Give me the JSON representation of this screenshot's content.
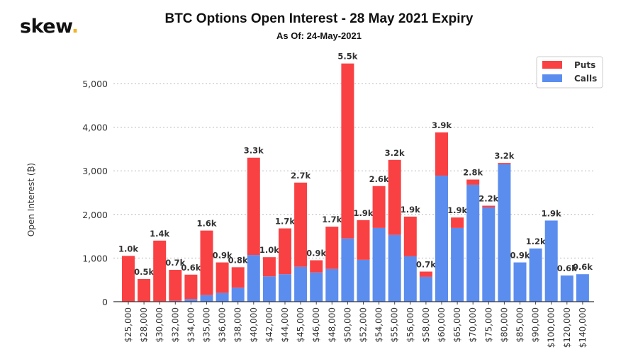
{
  "logo": {
    "text": "skew",
    "dot": "."
  },
  "chart_data": {
    "type": "bar",
    "stacked": true,
    "title": "BTC Options Open Interest - 28 May 2021 Expiry",
    "subtitle": "As Of: 24-May-2021",
    "xlabel": "",
    "ylabel": "Open Interest (₿)",
    "ylim": [
      0,
      5700
    ],
    "yticks": [
      0,
      1000,
      2000,
      3000,
      4000,
      5000
    ],
    "ytick_labels": [
      "0",
      "1,000",
      "2,000",
      "3,000",
      "4,000",
      "5,000"
    ],
    "grid": "horizontal dotted",
    "legend_position": "top-right",
    "categories": [
      "$25,000",
      "$28,000",
      "$30,000",
      "$32,000",
      "$34,000",
      "$35,000",
      "$36,000",
      "$38,000",
      "$40,000",
      "$42,000",
      "$44,000",
      "$45,000",
      "$46,000",
      "$48,000",
      "$50,000",
      "$52,000",
      "$54,000",
      "$55,000",
      "$56,000",
      "$58,000",
      "$60,000",
      "$65,000",
      "$70,000",
      "$75,000",
      "$80,000",
      "$85,000",
      "$90,000",
      "$100,000",
      "$120,000",
      "$140,000"
    ],
    "series": [
      {
        "name": "Calls",
        "color": "#5b8def",
        "values": [
          0,
          0,
          10,
          20,
          60,
          150,
          200,
          320,
          1070,
          580,
          630,
          800,
          670,
          750,
          1450,
          960,
          1690,
          1530,
          1040,
          570,
          2890,
          1690,
          2680,
          2160,
          3150,
          900,
          1220,
          1860,
          600,
          630
        ]
      },
      {
        "name": "Puts",
        "color": "#f94144",
        "values": [
          1050,
          520,
          1390,
          710,
          560,
          1480,
          700,
          470,
          2230,
          440,
          1050,
          1930,
          280,
          970,
          4010,
          910,
          960,
          1720,
          910,
          120,
          990,
          240,
          120,
          40,
          30,
          0,
          0,
          0,
          0,
          0
        ]
      }
    ],
    "data_labels": [
      "1.0k",
      "0.5k",
      "1.4k",
      "0.7k",
      "0.6k",
      "1.6k",
      "0.9k",
      "0.8k",
      "3.3k",
      "1.0k",
      "1.7k",
      "2.7k",
      "0.9k",
      "1.7k",
      "5.5k",
      "1.9k",
      "2.6k",
      "3.2k",
      "1.9k",
      "0.7k",
      "3.9k",
      "1.9k",
      "2.8k",
      "2.2k",
      "3.2k",
      "0.9k",
      "1.2k",
      "1.9k",
      "0.6k",
      "0.6k"
    ]
  }
}
